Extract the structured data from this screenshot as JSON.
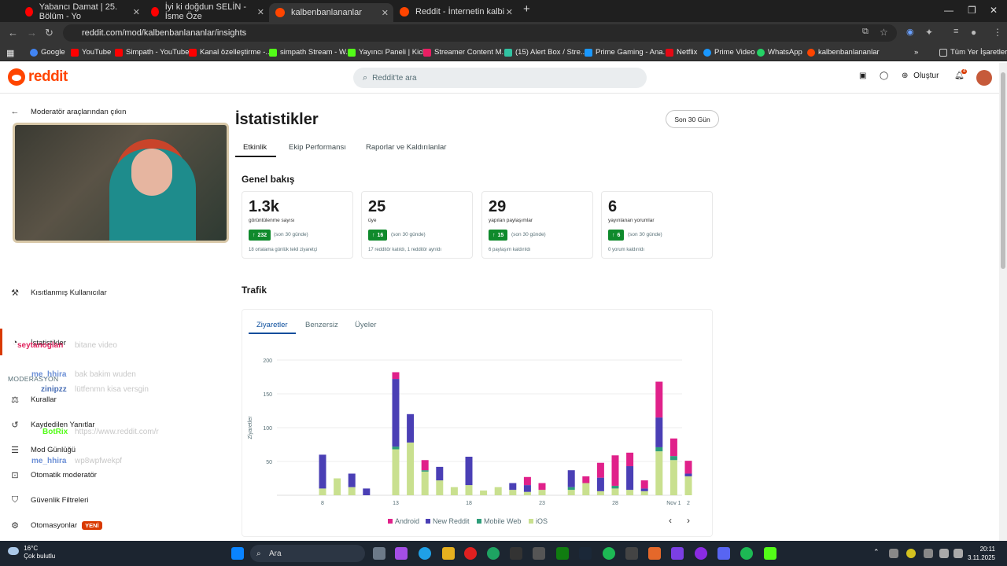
{
  "browser": {
    "tabs": [
      {
        "title": "Yabancı Damat | 25. Bölüm - Yo",
        "color": "#ff0000"
      },
      {
        "title": "İyi ki doğdun SELİN - İsme Öze",
        "color": "#ff0000"
      },
      {
        "title": "kalbenbanlananlar",
        "color": "#ff4500"
      },
      {
        "title": "Reddit - İnternetin kalbi",
        "color": "#ff4500"
      }
    ],
    "url": "reddit.com/mod/kalbenbanlananlar/insights",
    "bookmarks": [
      {
        "label": "Google",
        "color": "#4285f4"
      },
      {
        "label": "YouTube",
        "color": "#ff0000"
      },
      {
        "label": "Simpath - YouTube",
        "color": "#ff0000"
      },
      {
        "label": "Kanal özelleştirme -...",
        "color": "#ff0000"
      },
      {
        "label": "simpath Stream - W...",
        "color": "#53fc18"
      },
      {
        "label": "Yayıncı Paneli | Kick",
        "color": "#53fc18"
      },
      {
        "label": "Streamer Content M...",
        "color": "#e91e63"
      },
      {
        "label": "(15) Alert Box / Stre...",
        "color": "#31c3a2"
      },
      {
        "label": "Prime Gaming - Ana...",
        "color": "#1a98ff"
      },
      {
        "label": "Netflix",
        "color": "#e50914"
      },
      {
        "label": "Prime Video",
        "color": "#1a98ff"
      },
      {
        "label": "WhatsApp",
        "color": "#25d366"
      },
      {
        "label": "kalbenbanlananlar",
        "color": "#ff4500"
      }
    ],
    "all_bookmarks": "Tüm Yer İşaretleri"
  },
  "header": {
    "logo": "reddit",
    "search_placeholder": "Reddit'te ara",
    "create_label": "Oluştur",
    "notif_count": "4"
  },
  "sidebar": {
    "back_label": "Moderatör araçlarından çıkın",
    "restricted_label": "Kısıtlanmış Kullanıcılar",
    "insights_label": "İstatistikler",
    "section_label": "MODERASYON",
    "items": [
      {
        "label": "Kurallar",
        "icon": "rules-icon"
      },
      {
        "label": "Kaydedilen Yanıtlar",
        "icon": "saved-replies-icon"
      },
      {
        "label": "Mod Günlüğü",
        "icon": "mod-log-icon"
      },
      {
        "label": "Otomatik moderatör",
        "icon": "automod-icon"
      },
      {
        "label": "Güvenlik Filtreleri",
        "icon": "shield-icon"
      },
      {
        "label": "Otomasyonlar",
        "icon": "automation-icon"
      }
    ],
    "new_badge": "YENİ"
  },
  "chat": [
    {
      "user": "seytanoglan",
      "color": "#e0245e",
      "msg": "bitane video"
    },
    {
      "user": "me_hhira",
      "color": "#6b8fd6",
      "msg": "bak bakim wuden"
    },
    {
      "user": "zinipzz",
      "color": "#4a6fb5",
      "msg": "lütfenmn kisa versgin"
    },
    {
      "user": "BotRix",
      "color": "#53fc18",
      "msg": "https://www.reddit.com/r"
    },
    {
      "user": "me_hhira",
      "color": "#6b8fd6",
      "msg": "wp8wpfwekpf"
    }
  ],
  "main": {
    "title": "İstatistikler",
    "range": "Son 30 Gün",
    "tabs": [
      "Etkinlik",
      "Ekip Performansı",
      "Raporlar ve Kaldırılanlar"
    ],
    "overview_title": "Genel bakış",
    "stats": [
      {
        "value": "1.3k",
        "label": "görüntülenme sayısı",
        "delta": "232",
        "period": "(son 30 günde)",
        "foot": "18 ortalama günlük tekil ziyaretçi"
      },
      {
        "value": "25",
        "label": "üye",
        "delta": "16",
        "period": "(son 30 günde)",
        "foot": "17 redditör katıldı, 1 redditör ayrıldı"
      },
      {
        "value": "29",
        "label": "yapılan paylaşımlar",
        "delta": "15",
        "period": "(son 30 günde)",
        "foot": "6 paylaşım kaldırıldı"
      },
      {
        "value": "6",
        "label": "yayınlanan yorumlar",
        "delta": "6",
        "period": "(son 30 günde)",
        "foot": "0 yorum kaldırıldı"
      }
    ],
    "traffic_title": "Trafik",
    "traffic_tabs": [
      "Ziyaretler",
      "Benzersiz",
      "Üyeler"
    ]
  },
  "chart_data": {
    "type": "bar",
    "stacked": true,
    "ylabel": "Ziyaretler",
    "ylim": [
      0,
      200
    ],
    "yticks": [
      50,
      100,
      150,
      200
    ],
    "xtick_labels": [
      {
        "index": 0,
        "label": "8"
      },
      {
        "index": 5,
        "label": "13"
      },
      {
        "index": 10,
        "label": "18"
      },
      {
        "index": 15,
        "label": "23"
      },
      {
        "index": 20,
        "label": "28"
      },
      {
        "index": 24,
        "label": "Nov 1"
      },
      {
        "index": 25,
        "label": "2"
      }
    ],
    "colors": {
      "Android": "#e0218a",
      "New Reddit": "#4a3fb5",
      "Mobile Web": "#2e9e7a",
      "iOS": "#c9e08f"
    },
    "series": [
      {
        "name": "iOS",
        "values": [
          10,
          25,
          12,
          0,
          0,
          68,
          78,
          35,
          22,
          12,
          15,
          7,
          12,
          8,
          5,
          8,
          0,
          8,
          18,
          6,
          10,
          8,
          6,
          65,
          52,
          28
        ]
      },
      {
        "name": "Mobile Web",
        "values": [
          0,
          0,
          0,
          0,
          0,
          4,
          0,
          2,
          0,
          0,
          0,
          0,
          0,
          0,
          0,
          0,
          0,
          4,
          0,
          0,
          4,
          0,
          0,
          6,
          6,
          0
        ]
      },
      {
        "name": "New Reddit",
        "values": [
          50,
          0,
          20,
          10,
          0,
          100,
          42,
          0,
          20,
          0,
          42,
          0,
          0,
          10,
          10,
          0,
          0,
          25,
          0,
          20,
          0,
          35,
          4,
          44,
          0,
          4
        ]
      },
      {
        "name": "Android",
        "values": [
          0,
          0,
          0,
          0,
          0,
          10,
          0,
          15,
          0,
          0,
          0,
          0,
          0,
          0,
          12,
          10,
          0,
          0,
          10,
          22,
          45,
          20,
          12,
          53,
          26,
          19
        ]
      }
    ],
    "legend": [
      "Android",
      "New Reddit",
      "Mobile Web",
      "iOS"
    ]
  },
  "taskbar": {
    "temp": "16°C",
    "weather": "Çok bulutlu",
    "search": "Ara",
    "time": "20:11",
    "date": "3.11.2025"
  }
}
